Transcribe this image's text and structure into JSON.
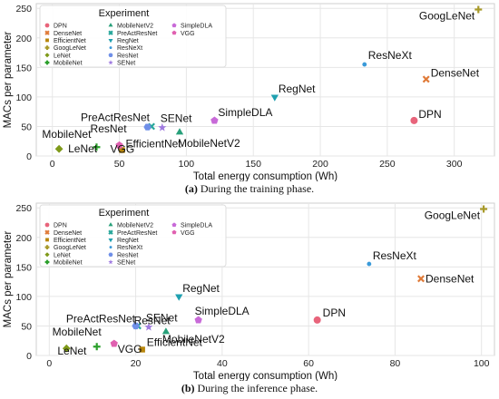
{
  "figure_captions": [
    {
      "label": "(a)",
      "text": "During the training phase."
    },
    {
      "label": "(b)",
      "text": "During the inference phase."
    }
  ],
  "chart_data": [
    {
      "type": "scatter",
      "title": "",
      "xlabel": "Total energy consumption (Wh)",
      "ylabel": "MACs per parameter",
      "xlim": [
        -12,
        330
      ],
      "ylim": [
        0,
        258
      ],
      "xticks": [
        0,
        50,
        100,
        150,
        200,
        250,
        300
      ],
      "yticks": [
        0,
        50,
        100,
        150,
        200,
        250
      ],
      "grid": true,
      "legend": {
        "title": "Experiment",
        "placement": "top-left"
      },
      "series": [
        {
          "name": "DPN",
          "color": "#e8647b",
          "marker": "circle",
          "x": 270,
          "y": 60
        },
        {
          "name": "DenseNet",
          "color": "#e07b39",
          "marker": "x",
          "x": 279,
          "y": 130
        },
        {
          "name": "EfficientNet",
          "color": "#b8860b",
          "marker": "square",
          "x": 52,
          "y": 10
        },
        {
          "name": "GoogLeNet",
          "color": "#a89a2a",
          "marker": "plus",
          "x": 318,
          "y": 248
        },
        {
          "name": "LeNet",
          "color": "#7f9a1a",
          "marker": "diamond",
          "x": 5,
          "y": 12
        },
        {
          "name": "MobileNet",
          "color": "#2ca02c",
          "marker": "plus",
          "x": 33,
          "y": 15
        },
        {
          "name": "MobileNetV2",
          "color": "#28a07a",
          "marker": "triangle-up",
          "x": 95,
          "y": 40
        },
        {
          "name": "PreActResNet",
          "color": "#26a69a",
          "marker": "x",
          "x": 74,
          "y": 50
        },
        {
          "name": "RegNet",
          "color": "#1fa0b0",
          "marker": "triangle-down",
          "x": 166,
          "y": 100
        },
        {
          "name": "ResNeXt",
          "color": "#3a9ad9",
          "marker": "circle-small",
          "x": 233,
          "y": 155
        },
        {
          "name": "ResNet",
          "color": "#6f8fe8",
          "marker": "hexagon",
          "x": 71,
          "y": 49
        },
        {
          "name": "SENet",
          "color": "#a07be0",
          "marker": "star",
          "x": 82,
          "y": 48
        },
        {
          "name": "SimpleDLA",
          "color": "#c86ad8",
          "marker": "pentagon",
          "x": 121,
          "y": 60
        },
        {
          "name": "VGG",
          "color": "#e060b0",
          "marker": "pentagon",
          "x": 50,
          "y": 18
        }
      ],
      "annotations": [
        "GoogLeNet",
        "ResNeXt",
        "DenseNet",
        "RegNet",
        "DPN",
        "SimpleDLA",
        "PreActResNet",
        "SENet",
        "MobileNetV2",
        "ResNet",
        "MobileNet",
        "EfficientNet",
        "LeNet",
        "VGG"
      ]
    },
    {
      "type": "scatter",
      "title": "",
      "xlabel": "Total energy consumption (Wh)",
      "ylabel": "MACs per parameter",
      "xlim": [
        -3,
        103
      ],
      "ylim": [
        0,
        258
      ],
      "xticks": [
        0,
        20,
        40,
        60,
        80,
        100
      ],
      "yticks": [
        0,
        50,
        100,
        150,
        200,
        250
      ],
      "grid": true,
      "legend": {
        "title": "Experiment",
        "placement": "top-left"
      },
      "series": [
        {
          "name": "DPN",
          "color": "#e8647b",
          "marker": "circle",
          "x": 62,
          "y": 60
        },
        {
          "name": "DenseNet",
          "color": "#e07b39",
          "marker": "x",
          "x": 86,
          "y": 130
        },
        {
          "name": "EfficientNet",
          "color": "#b8860b",
          "marker": "square",
          "x": 21.5,
          "y": 10
        },
        {
          "name": "GoogLeNet",
          "color": "#a89a2a",
          "marker": "plus",
          "x": 100.5,
          "y": 248
        },
        {
          "name": "LeNet",
          "color": "#7f9a1a",
          "marker": "diamond",
          "x": 4,
          "y": 12
        },
        {
          "name": "MobileNet",
          "color": "#2ca02c",
          "marker": "plus",
          "x": 11,
          "y": 15
        },
        {
          "name": "MobileNetV2",
          "color": "#28a07a",
          "marker": "triangle-up",
          "x": 27,
          "y": 40
        },
        {
          "name": "PreActResNet",
          "color": "#26a69a",
          "marker": "x",
          "x": 20.5,
          "y": 50
        },
        {
          "name": "RegNet",
          "color": "#1fa0b0",
          "marker": "triangle-down",
          "x": 30,
          "y": 100
        },
        {
          "name": "ResNeXt",
          "color": "#3a9ad9",
          "marker": "circle-small",
          "x": 74,
          "y": 155
        },
        {
          "name": "ResNet",
          "color": "#6f8fe8",
          "marker": "hexagon",
          "x": 20,
          "y": 50
        },
        {
          "name": "SENet",
          "color": "#a07be0",
          "marker": "star",
          "x": 23,
          "y": 48
        },
        {
          "name": "SimpleDLA",
          "color": "#c86ad8",
          "marker": "pentagon",
          "x": 34.5,
          "y": 60
        },
        {
          "name": "VGG",
          "color": "#e060b0",
          "marker": "pentagon",
          "x": 15,
          "y": 20
        }
      ],
      "annotations": [
        "GoogLeNet",
        "ResNeXt",
        "DenseNet",
        "RegNet",
        "DPN",
        "SimpleDLA",
        "PreActResNet",
        "SENet",
        "MobileNetV2",
        "ResNet",
        "MobileNet",
        "EfficientNet",
        "LeNet",
        "VGG"
      ]
    }
  ]
}
